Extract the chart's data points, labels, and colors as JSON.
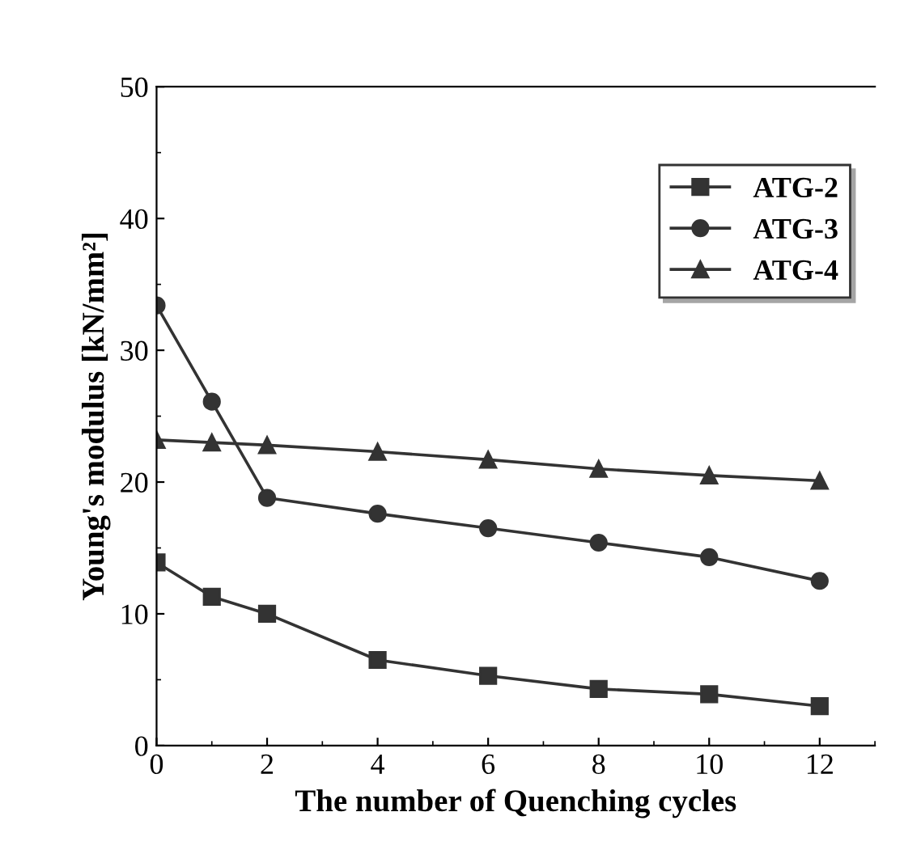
{
  "chart_data": {
    "type": "line",
    "xlabel": "The number of Quenching cycles",
    "ylabel": "Young's modulus [kN/mm²]",
    "x": [
      0,
      1,
      2,
      4,
      6,
      8,
      10,
      12
    ],
    "series": [
      {
        "name": "ATG-2",
        "color": "#333333",
        "marker": "square",
        "values": [
          13.9,
          11.3,
          10.0,
          6.5,
          5.3,
          4.3,
          3.9,
          3.0
        ]
      },
      {
        "name": "ATG-3",
        "color": "#333333",
        "marker": "circle",
        "values": [
          33.4,
          26.1,
          18.8,
          17.6,
          16.5,
          15.4,
          14.3,
          12.5
        ]
      },
      {
        "name": "ATG-4",
        "color": "#333333",
        "marker": "triangle",
        "values": [
          23.2,
          23.0,
          22.8,
          22.3,
          21.7,
          21.0,
          20.5,
          20.1
        ]
      }
    ],
    "xlim": [
      0,
      13
    ],
    "xticks": [
      0,
      2,
      4,
      6,
      8,
      10,
      12
    ],
    "ylim": [
      0,
      50
    ],
    "yticks": [
      0,
      10,
      20,
      30,
      40,
      50
    ],
    "grid": false,
    "legend": "top right",
    "line_style": "solid"
  }
}
